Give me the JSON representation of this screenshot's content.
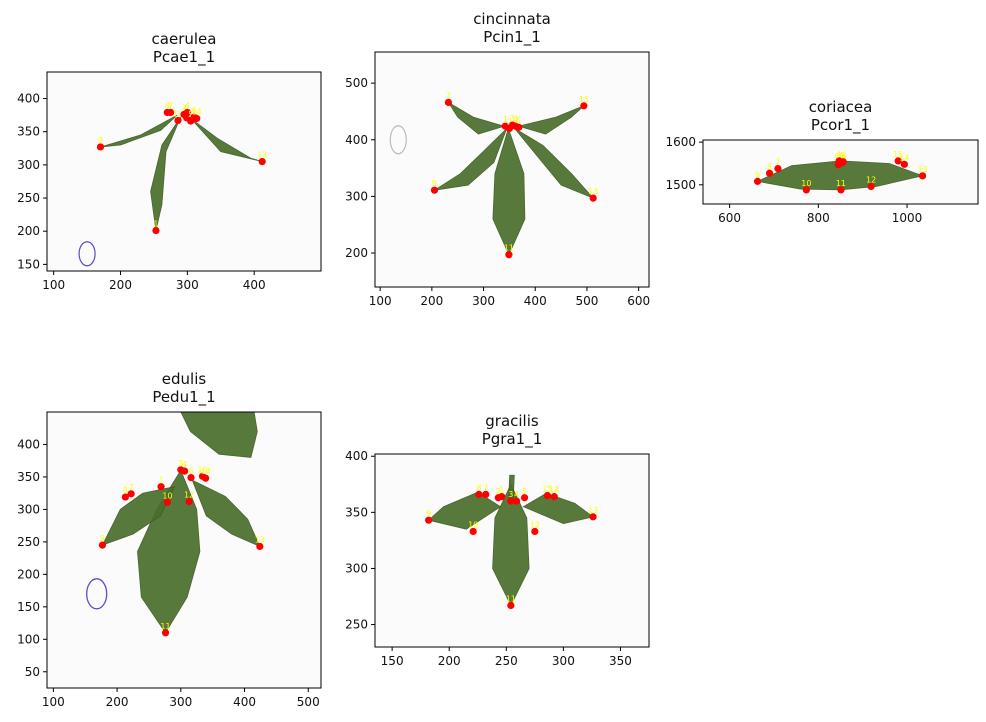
{
  "figure": {
    "layout": "grid",
    "colors": {
      "landmark": "#ff0000",
      "label": "#ffff00",
      "leaf": "#4a6e2b",
      "ink": "#5a4ccf"
    }
  },
  "chart_data": [
    {
      "type": "scatter",
      "species": "caerulea",
      "sample": "Pcae1_1",
      "xlim": [
        90,
        500
      ],
      "ylim": [
        440,
        140
      ],
      "xticks": [
        100,
        200,
        300,
        400
      ],
      "yticks": [
        150,
        200,
        250,
        300,
        350,
        400
      ],
      "grid": false,
      "points": [
        {
          "id": "1",
          "x": 253,
          "y": 201
        },
        {
          "id": "9",
          "x": 170,
          "y": 327
        },
        {
          "id": "13",
          "x": 412,
          "y": 305
        },
        {
          "id": "8",
          "x": 270,
          "y": 379
        },
        {
          "id": "7",
          "x": 275,
          "y": 379
        },
        {
          "id": "10",
          "x": 286,
          "y": 367
        },
        {
          "id": "3",
          "x": 295,
          "y": 376
        },
        {
          "id": "2",
          "x": 299,
          "y": 371
        },
        {
          "id": "4",
          "x": 300,
          "y": 379
        },
        {
          "id": "5",
          "x": 305,
          "y": 366
        },
        {
          "id": "6",
          "x": 310,
          "y": 372
        },
        {
          "id": "14",
          "x": 314,
          "y": 370
        }
      ]
    },
    {
      "type": "scatter",
      "species": "cincinnata",
      "sample": "Pcin1_1",
      "xlim": [
        90,
        620
      ],
      "ylim": [
        555,
        140
      ],
      "xticks": [
        100,
        200,
        300,
        400,
        500,
        600
      ],
      "yticks": [
        200,
        300,
        400,
        500
      ],
      "grid": false,
      "points": [
        {
          "id": "11",
          "x": 349,
          "y": 197
        },
        {
          "id": "9",
          "x": 205,
          "y": 311
        },
        {
          "id": "13",
          "x": 512,
          "y": 297
        },
        {
          "id": "7",
          "x": 232,
          "y": 466
        },
        {
          "id": "15",
          "x": 494,
          "y": 460
        },
        {
          "id": "1",
          "x": 342,
          "y": 424
        },
        {
          "id": "2",
          "x": 350,
          "y": 420
        },
        {
          "id": "3",
          "x": 356,
          "y": 426
        },
        {
          "id": "4",
          "x": 362,
          "y": 424
        },
        {
          "id": "5",
          "x": 368,
          "y": 422
        }
      ]
    },
    {
      "type": "scatter",
      "species": "coriacea",
      "sample": "Pcor1_1",
      "xlim": [
        540,
        1160
      ],
      "ylim": [
        1605,
        1455
      ],
      "xticks": [
        600,
        800,
        1000
      ],
      "yticks": [
        1500,
        1600
      ],
      "grid": false,
      "points": [
        {
          "id": "9",
          "x": 663,
          "y": 1508
        },
        {
          "id": "10",
          "x": 773,
          "y": 1488
        },
        {
          "id": "11",
          "x": 851,
          "y": 1488
        },
        {
          "id": "12",
          "x": 919,
          "y": 1496
        },
        {
          "id": "13",
          "x": 1035,
          "y": 1521
        },
        {
          "id": "8",
          "x": 690,
          "y": 1527
        },
        {
          "id": "7",
          "x": 709,
          "y": 1538
        },
        {
          "id": "35",
          "x": 845,
          "y": 1547
        },
        {
          "id": "36",
          "x": 852,
          "y": 1551
        },
        {
          "id": "4",
          "x": 847,
          "y": 1556
        },
        {
          "id": "5",
          "x": 856,
          "y": 1554
        },
        {
          "id": "15",
          "x": 980,
          "y": 1556
        },
        {
          "id": "14",
          "x": 994,
          "y": 1548
        }
      ]
    },
    {
      "type": "scatter",
      "species": "edulis",
      "sample": "Pedu1_1",
      "xlim": [
        90,
        520
      ],
      "ylim": [
        450,
        25
      ],
      "xticks": [
        100,
        200,
        300,
        400,
        500
      ],
      "yticks": [
        50,
        100,
        150,
        200,
        250,
        300,
        350,
        400
      ],
      "grid": false,
      "points": [
        {
          "id": "11",
          "x": 276,
          "y": 110
        },
        {
          "id": "9",
          "x": 177,
          "y": 245
        },
        {
          "id": "13",
          "x": 424,
          "y": 243
        },
        {
          "id": "8",
          "x": 213,
          "y": 319
        },
        {
          "id": "7",
          "x": 222,
          "y": 324
        },
        {
          "id": "10",
          "x": 279,
          "y": 311
        },
        {
          "id": "12",
          "x": 313,
          "y": 312
        },
        {
          "id": "1",
          "x": 269,
          "y": 335
        },
        {
          "id": "3",
          "x": 300,
          "y": 361
        },
        {
          "id": "4",
          "x": 306,
          "y": 359
        },
        {
          "id": "6",
          "x": 316,
          "y": 349
        },
        {
          "id": "15",
          "x": 334,
          "y": 351
        },
        {
          "id": "14",
          "x": 339,
          "y": 348
        }
      ]
    },
    {
      "type": "scatter",
      "species": "gracilis",
      "sample": "Pgra1_1",
      "xlim": [
        135,
        375
      ],
      "ylim": [
        402,
        230
      ],
      "xticks": [
        150,
        200,
        250,
        300,
        350
      ],
      "yticks": [
        250,
        300,
        350,
        400
      ],
      "grid": false,
      "points": [
        {
          "id": "11",
          "x": 254,
          "y": 267
        },
        {
          "id": "9",
          "x": 182,
          "y": 343
        },
        {
          "id": "10",
          "x": 221,
          "y": 333
        },
        {
          "id": "12",
          "x": 275,
          "y": 333
        },
        {
          "id": "13",
          "x": 326,
          "y": 346
        },
        {
          "id": "8",
          "x": 226,
          "y": 366
        },
        {
          "id": "7",
          "x": 232,
          "y": 366
        },
        {
          "id": "2",
          "x": 243,
          "y": 363
        },
        {
          "id": "1",
          "x": 246,
          "y": 364
        },
        {
          "id": "3",
          "x": 254,
          "y": 360
        },
        {
          "id": "4",
          "x": 259,
          "y": 360
        },
        {
          "id": "5",
          "x": 266,
          "y": 363
        },
        {
          "id": "15",
          "x": 286,
          "y": 365
        },
        {
          "id": "14",
          "x": 292,
          "y": 364
        }
      ]
    }
  ]
}
